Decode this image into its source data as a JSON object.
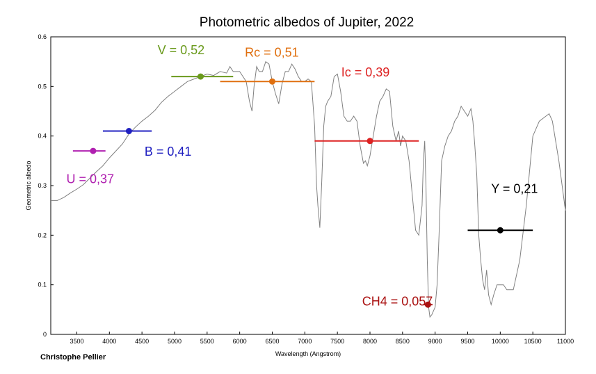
{
  "chart_data": {
    "type": "line",
    "title": "Photometric albedos of Jupiter, 2022",
    "xlabel": "Wavelength (Angstrom)",
    "ylabel": "Geometric albedo",
    "credit": "Christophe Pellier",
    "xlim": [
      3100,
      11000
    ],
    "ylim": [
      0,
      0.6
    ],
    "x_ticks": [
      3500,
      4000,
      4500,
      5000,
      5500,
      6000,
      6500,
      7000,
      7500,
      8000,
      8500,
      9000,
      9500,
      10000,
      10500,
      11000
    ],
    "y_ticks": [
      0,
      0.1,
      0.2,
      0.3,
      0.4,
      0.5,
      0.6
    ],
    "grid": false,
    "line_color": "#808080",
    "series": [
      {
        "x": [
          3100,
          3200,
          3300,
          3400,
          3500,
          3600,
          3700,
          3800,
          3900,
          4000,
          4100,
          4200,
          4300,
          4400,
          4500,
          4600,
          4700,
          4800,
          4900,
          5000,
          5100,
          5200,
          5300,
          5400,
          5500,
          5600,
          5700,
          5800,
          5850,
          5900,
          6000,
          6100,
          6150,
          6190,
          6220,
          6260,
          6300,
          6350,
          6400,
          6450,
          6500,
          6550,
          6600,
          6650,
          6700,
          6750,
          6800,
          6850,
          6900,
          6950,
          7000,
          7050,
          7100,
          7150,
          7180,
          7200,
          7230,
          7260,
          7290,
          7320,
          7350,
          7400,
          7450,
          7500,
          7550,
          7600,
          7650,
          7700,
          7750,
          7800,
          7850,
          7900,
          7930,
          7960,
          8000,
          8050,
          8100,
          8150,
          8200,
          8250,
          8300,
          8350,
          8400,
          8440,
          8470,
          8500,
          8550,
          8600,
          8650,
          8700,
          8750,
          8800,
          8820,
          8840,
          8860,
          8880,
          8900,
          8920,
          8950,
          9000,
          9030,
          9060,
          9100,
          9150,
          9200,
          9250,
          9300,
          9350,
          9400,
          9450,
          9500,
          9550,
          9580,
          9610,
          9640,
          9670,
          9700,
          9730,
          9760,
          9790,
          9820,
          9860,
          9900,
          9950,
          10000,
          10050,
          10100,
          10200,
          10300,
          10400,
          10500,
          10600,
          10700,
          10750,
          10800,
          10900,
          11000
        ],
        "values": [
          0.27,
          0.27,
          0.276,
          0.285,
          0.293,
          0.302,
          0.315,
          0.328,
          0.34,
          0.356,
          0.37,
          0.384,
          0.404,
          0.418,
          0.43,
          0.44,
          0.452,
          0.468,
          0.48,
          0.49,
          0.5,
          0.51,
          0.515,
          0.52,
          0.525,
          0.522,
          0.53,
          0.527,
          0.54,
          0.53,
          0.53,
          0.51,
          0.47,
          0.45,
          0.5,
          0.54,
          0.53,
          0.53,
          0.55,
          0.545,
          0.51,
          0.485,
          0.465,
          0.505,
          0.53,
          0.53,
          0.545,
          0.535,
          0.52,
          0.51,
          0.51,
          0.515,
          0.51,
          0.42,
          0.3,
          0.26,
          0.215,
          0.31,
          0.42,
          0.46,
          0.47,
          0.48,
          0.52,
          0.525,
          0.49,
          0.44,
          0.43,
          0.43,
          0.44,
          0.43,
          0.38,
          0.345,
          0.35,
          0.34,
          0.36,
          0.4,
          0.44,
          0.47,
          0.48,
          0.495,
          0.49,
          0.42,
          0.39,
          0.41,
          0.38,
          0.4,
          0.39,
          0.35,
          0.28,
          0.21,
          0.2,
          0.26,
          0.35,
          0.39,
          0.3,
          0.15,
          0.055,
          0.035,
          0.04,
          0.055,
          0.1,
          0.2,
          0.35,
          0.38,
          0.4,
          0.41,
          0.43,
          0.44,
          0.46,
          0.45,
          0.44,
          0.455,
          0.43,
          0.38,
          0.32,
          0.2,
          0.15,
          0.11,
          0.09,
          0.13,
          0.08,
          0.06,
          0.08,
          0.1,
          0.1,
          0.1,
          0.09,
          0.09,
          0.15,
          0.26,
          0.4,
          0.43,
          0.44,
          0.445,
          0.43,
          0.35,
          0.25
        ]
      }
    ],
    "bands": [
      {
        "name": "U",
        "label": "U = 0,37",
        "center": 3750,
        "min": 3440,
        "max": 3940,
        "albedo": 0.37,
        "color": "#b020b0",
        "label_x": 3340,
        "label_y": 0.305
      },
      {
        "name": "B",
        "label": "B = 0,41",
        "center": 4300,
        "min": 3900,
        "max": 4650,
        "albedo": 0.41,
        "color": "#2020c0",
        "label_x": 4540,
        "label_y": 0.36
      },
      {
        "name": "V",
        "label": "V = 0,52",
        "center": 5400,
        "min": 4950,
        "max": 5900,
        "albedo": 0.52,
        "color": "#6a9a1c",
        "label_x": 4740,
        "label_y": 0.565
      },
      {
        "name": "Rc",
        "label": "Rc = 0,51",
        "center": 6500,
        "min": 5700,
        "max": 7150,
        "albedo": 0.51,
        "color": "#e07010",
        "label_x": 6080,
        "label_y": 0.56
      },
      {
        "name": "Ic",
        "label": "Ic = 0,39",
        "center": 8000,
        "min": 7150,
        "max": 8750,
        "albedo": 0.39,
        "color": "#dd2222",
        "label_x": 7560,
        "label_y": 0.52
      },
      {
        "name": "CH4",
        "label": "CH4 = 0,057",
        "center": 8890,
        "min": 8820,
        "max": 8960,
        "albedo": 0.06,
        "color": "#aa1111",
        "label_x": 7880,
        "label_y": 0.058
      },
      {
        "name": "Y",
        "label": "Y = 0,21",
        "center": 10000,
        "min": 9500,
        "max": 10500,
        "albedo": 0.21,
        "color": "#000000",
        "label_x": 9860,
        "label_y": 0.285
      }
    ]
  }
}
